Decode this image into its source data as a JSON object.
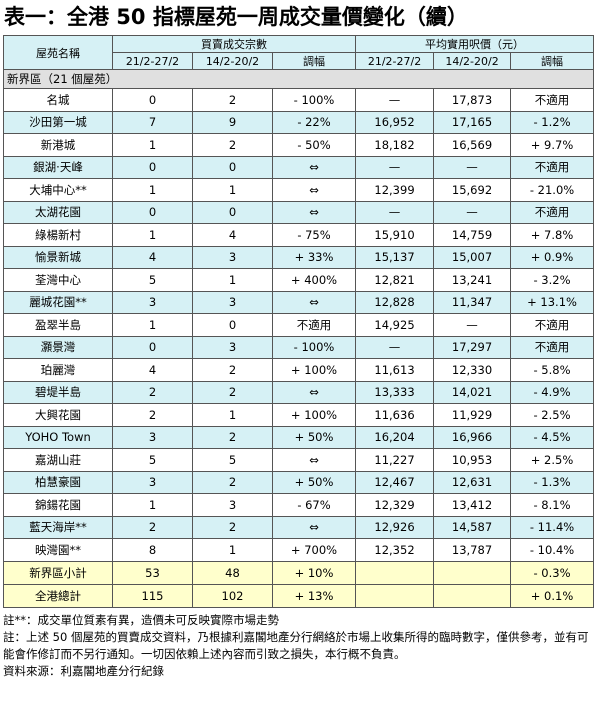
{
  "title": "表一：全港 50 指標屋苑一周成交量價變化（續）",
  "table": {
    "header": {
      "name": "屋苑名稱",
      "groups": [
        "買賣成交宗數",
        "平均實用呎價（元）"
      ],
      "subheaders": [
        "21/2-27/2",
        "14/2-20/2",
        "調幅",
        "21/2-27/2",
        "14/2-20/2",
        "調幅"
      ]
    },
    "section": "新界區（21 個屋苑）",
    "rows": [
      [
        "名城",
        "0",
        "2",
        "- 100%",
        "—",
        "17,873",
        "不適用"
      ],
      [
        "沙田第一城",
        "7",
        "9",
        "- 22%",
        "16,952",
        "17,165",
        "- 1.2%"
      ],
      [
        "新港城",
        "1",
        "2",
        "- 50%",
        "18,182",
        "16,569",
        "+ 9.7%"
      ],
      [
        "銀湖‧天峰",
        "0",
        "0",
        "⇔",
        "—",
        "—",
        "不適用"
      ],
      [
        "大埔中心**",
        "1",
        "1",
        "⇔",
        "12,399",
        "15,692",
        "- 21.0%"
      ],
      [
        "太湖花園",
        "0",
        "0",
        "⇔",
        "—",
        "—",
        "不適用"
      ],
      [
        "綠楊新村",
        "1",
        "4",
        "- 75%",
        "15,910",
        "14,759",
        "+ 7.8%"
      ],
      [
        "愉景新城",
        "4",
        "3",
        "+ 33%",
        "15,137",
        "15,007",
        "+ 0.9%"
      ],
      [
        "荃灣中心",
        "5",
        "1",
        "+ 400%",
        "12,821",
        "13,241",
        "- 3.2%"
      ],
      [
        "麗城花園**",
        "3",
        "3",
        "⇔",
        "12,828",
        "11,347",
        "+ 13.1%"
      ],
      [
        "盈翠半島",
        "1",
        "0",
        "不適用",
        "14,925",
        "—",
        "不適用"
      ],
      [
        "灝景灣",
        "0",
        "3",
        "- 100%",
        "—",
        "17,297",
        "不適用"
      ],
      [
        "珀麗灣",
        "4",
        "2",
        "+ 100%",
        "11,613",
        "12,330",
        "- 5.8%"
      ],
      [
        "碧堤半島",
        "2",
        "2",
        "⇔",
        "13,333",
        "14,021",
        "- 4.9%"
      ],
      [
        "大興花園",
        "2",
        "1",
        "+ 100%",
        "11,636",
        "11,929",
        "- 2.5%"
      ],
      [
        "YOHO Town",
        "3",
        "2",
        "+ 50%",
        "16,204",
        "16,966",
        "- 4.5%"
      ],
      [
        "嘉湖山莊",
        "5",
        "5",
        "⇔",
        "11,227",
        "10,953",
        "+ 2.5%"
      ],
      [
        "柏慧豪園",
        "3",
        "2",
        "+ 50%",
        "12,467",
        "12,631",
        "- 1.3%"
      ],
      [
        "錦鍚花園",
        "1",
        "3",
        "- 67%",
        "12,329",
        "13,412",
        "- 8.1%"
      ],
      [
        "藍天海岸**",
        "2",
        "2",
        "⇔",
        "12,926",
        "14,587",
        "- 11.4%"
      ],
      [
        "映灣園**",
        "8",
        "1",
        "+ 700%",
        "12,352",
        "13,787",
        "- 10.4%"
      ]
    ],
    "totals": [
      [
        "新界區小計",
        "53",
        "48",
        "+ 10%",
        "- 0.3%"
      ],
      [
        "全港總計",
        "115",
        "102",
        "+ 13%",
        "+ 0.1%"
      ]
    ]
  },
  "notes": [
    "註**：成交單位質素有異，造價未可反映實際市場走勢",
    "註：上述 50 個屋苑的買賣成交資料，乃根據利嘉閣地產分行網絡於市場上收集所得的臨時數字，僅供參考，並有可能會作修訂而不另行通知。一切因依賴上述內容而引致之損失，本行概不負責。",
    "資料來源：利嘉閣地產分行紀錄"
  ]
}
